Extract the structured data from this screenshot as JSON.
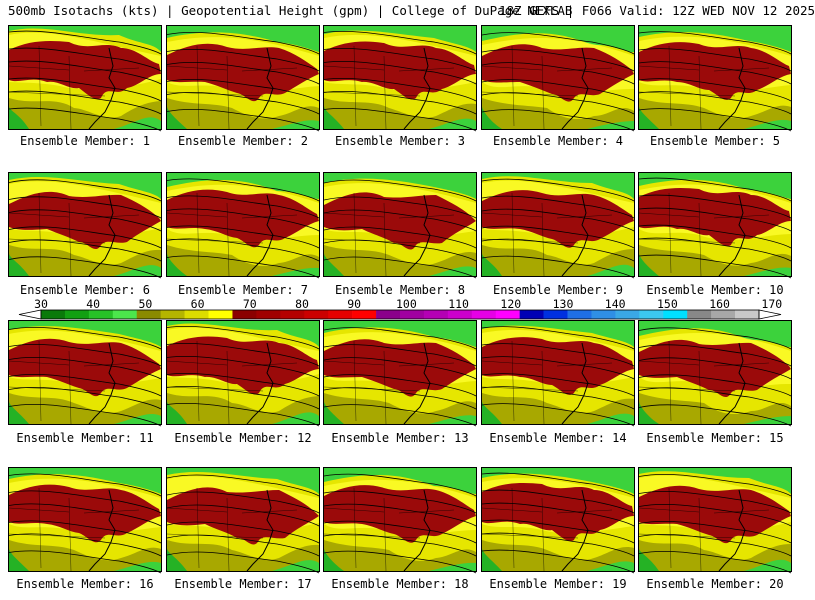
{
  "title": {
    "left": "500mb Isotachs (kts) | Geopotential Height (gpm) | College of DuPage NEXLAB",
    "right": "18Z GEFS | F066 Valid: 12Z WED NOV 12 2025"
  },
  "colorbar": {
    "ticks": [
      "30",
      "40",
      "50",
      "60",
      "70",
      "80",
      "90",
      "100",
      "110",
      "120",
      "130",
      "140",
      "150",
      "160",
      "170"
    ],
    "colors": [
      "#0a7a0a",
      "#12a012",
      "#27c227",
      "#4ce64c",
      "#8a8a00",
      "#b5b500",
      "#dcdc00",
      "#ffff00",
      "#8b0000",
      "#a00000",
      "#b50000",
      "#cc0000",
      "#e60000",
      "#ff0000",
      "#8b008b",
      "#a000a0",
      "#b400b4",
      "#cc00cc",
      "#e600e6",
      "#ff00ff",
      "#0000b4",
      "#0030e0",
      "#1f6fe6",
      "#2f8fe6",
      "#3aa8e6",
      "#3cc8f0",
      "#00e0ff",
      "#888888",
      "#a8a8a8",
      "#c8c8c8"
    ]
  },
  "members": [
    {
      "label": "Ensemble Member: 1"
    },
    {
      "label": "Ensemble Member: 2"
    },
    {
      "label": "Ensemble Member: 3"
    },
    {
      "label": "Ensemble Member: 4"
    },
    {
      "label": "Ensemble Member: 5"
    },
    {
      "label": "Ensemble Member: 6"
    },
    {
      "label": "Ensemble Member: 7"
    },
    {
      "label": "Ensemble Member: 8"
    },
    {
      "label": "Ensemble Member: 9"
    },
    {
      "label": "Ensemble Member: 10"
    },
    {
      "label": "Ensemble Member: 11"
    },
    {
      "label": "Ensemble Member: 12"
    },
    {
      "label": "Ensemble Member: 13"
    },
    {
      "label": "Ensemble Member: 14"
    },
    {
      "label": "Ensemble Member: 15"
    },
    {
      "label": "Ensemble Member: 16"
    },
    {
      "label": "Ensemble Member: 17"
    },
    {
      "label": "Ensemble Member: 18"
    },
    {
      "label": "Ensemble Member: 19"
    },
    {
      "label": "Ensemble Member: 20"
    }
  ],
  "palette": {
    "green": "#3cd23c",
    "dark_green": "#1faa1f",
    "olive": "#a8a800",
    "yellow": "#e6e600",
    "bright_yellow": "#ffff30",
    "jet_red": "#9b0a0a",
    "contour": "#000000"
  }
}
